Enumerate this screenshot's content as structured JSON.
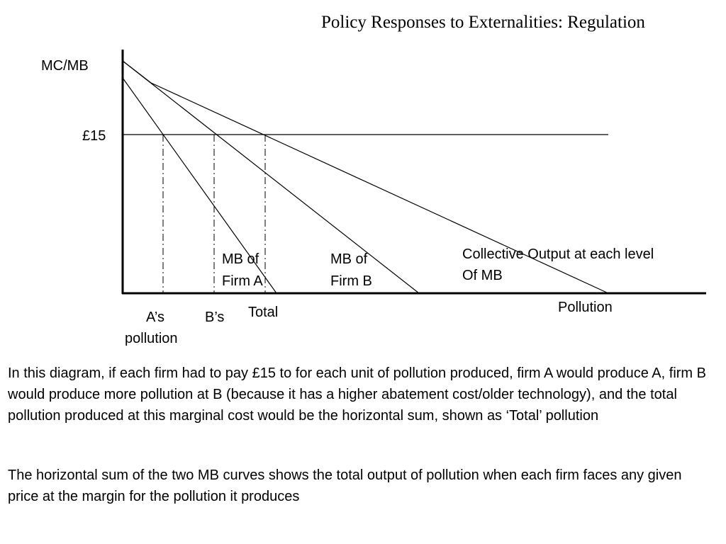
{
  "title": "Policy Responses to Externalities: Regulation",
  "diagram": {
    "y_axis_label": "MC/MB",
    "x_axis_label": "Pollution",
    "price_label": "£15",
    "curve_a_label": [
      "MB of",
      "Firm A"
    ],
    "curve_b_label": [
      "MB of",
      "Firm B"
    ],
    "collective_label": [
      "Collective Output at each level",
      "Of MB"
    ],
    "marker_a_label": [
      "A’s",
      "pollution"
    ],
    "marker_b_label": "B’s",
    "marker_total_label": "Total"
  },
  "text": {
    "paragraph1": "In this diagram, if each firm had to pay £15 to for each unit of pollution produced, firm A would produce A, firm B would produce more pollution at B (because it has a higher abatement cost/older technology), and the total pollution produced at this marginal cost would be the horizontal sum, shown as ‘Total’ pollution",
    "paragraph2": "The horizontal sum of the two MB curves shows the total output of pollution when each firm faces any given price at the margin for the pollution it produces"
  }
}
